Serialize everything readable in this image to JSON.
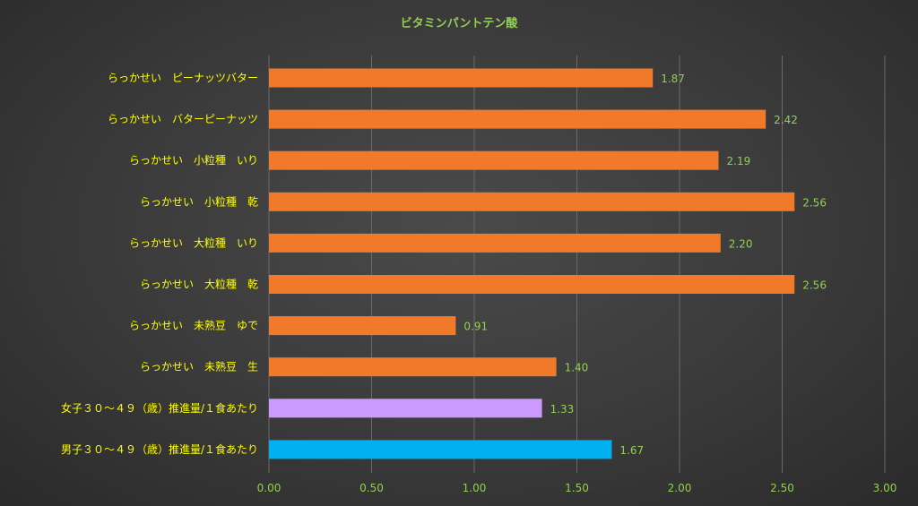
{
  "chart_data": {
    "type": "bar",
    "orientation": "horizontal",
    "title": "ビタミンパントテン酸",
    "categories": [
      "らっかせい　ピーナッツバター",
      "らっかせい　バターピーナッツ",
      "らっかせい　小粒種　いり",
      "らっかせい　小粒種　乾",
      "らっかせい　大粒種　いり",
      "らっかせい　大粒種　乾",
      "らっかせい　未熟豆　ゆで",
      "らっかせい　未熟豆　生",
      "女子３０～４９（歳）推進量/１食あたり",
      "男子３０～４９（歳）推進量/１食あたり"
    ],
    "values": [
      1.87,
      2.42,
      2.19,
      2.56,
      2.2,
      2.56,
      0.91,
      1.4,
      1.33,
      1.67
    ],
    "value_labels": [
      "1.87",
      "2.42",
      "2.19",
      "2.56",
      "2.20",
      "2.56",
      "0.91",
      "1.40",
      "1.33",
      "1.67"
    ],
    "bar_colors": [
      "#f07a2a",
      "#f07a2a",
      "#f07a2a",
      "#f07a2a",
      "#f07a2a",
      "#f07a2a",
      "#f07a2a",
      "#f07a2a",
      "#cc99ff",
      "#00b0f0"
    ],
    "xlim": [
      0,
      3
    ],
    "x_ticks": [
      0,
      0.5,
      1,
      1.5,
      2,
      2.5,
      3
    ],
    "x_tick_labels": [
      "0.00",
      "0.50",
      "1.00",
      "1.50",
      "2.00",
      "2.50",
      "3.00"
    ],
    "grid": "vertical",
    "legend": "none",
    "colors": {
      "title": "#92d050",
      "category_labels": "#ffff00",
      "tick_labels": "#92d050",
      "value_labels": "#92d050",
      "gridlines": "#6a6a6a"
    }
  }
}
